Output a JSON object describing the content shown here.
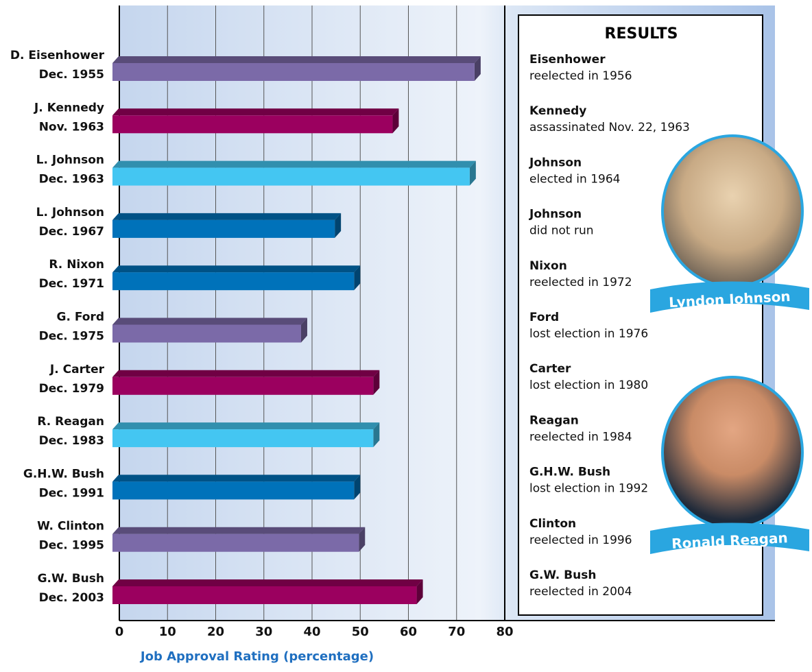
{
  "chart_data": {
    "type": "bar",
    "orientation": "horizontal",
    "x_label": "Job Approval Rating (percentage)",
    "categories": [
      [
        "D. Eisenhower",
        "Dec. 1955"
      ],
      [
        "J. Kennedy",
        "Nov. 1963"
      ],
      [
        "L. Johnson",
        "Dec. 1963"
      ],
      [
        "L. Johnson",
        "Dec. 1967"
      ],
      [
        "R. Nixon",
        "Dec. 1971"
      ],
      [
        "G. Ford",
        "Dec. 1975"
      ],
      [
        "J. Carter",
        "Dec. 1979"
      ],
      [
        "R. Reagan",
        "Dec. 1983"
      ],
      [
        "G.H.W. Bush",
        "Dec. 1991"
      ],
      [
        "W. Clinton",
        "Dec. 1995"
      ],
      [
        "G.W. Bush",
        "Dec. 2003"
      ]
    ],
    "values": [
      75,
      58,
      74,
      46,
      50,
      39,
      54,
      54,
      50,
      51,
      63
    ],
    "colors": [
      "#7b6aa8",
      "#9b005f",
      "#44c6f2",
      "#0072ba",
      "#0072ba",
      "#7b6aa8",
      "#9b005f",
      "#44c6f2",
      "#0072ba",
      "#7b6aa8",
      "#9b005f"
    ],
    "xlim": [
      0,
      80
    ],
    "xticks": [
      0,
      10,
      20,
      30,
      40,
      50,
      60,
      70,
      80
    ],
    "grid": true
  },
  "results": {
    "title": "RESULTS",
    "items": [
      {
        "name": "Eisenhower",
        "note": "reelected in 1956"
      },
      {
        "name": "Kennedy",
        "note": "assassinated Nov. 22, 1963"
      },
      {
        "name": "Johnson",
        "note": "elected in 1964"
      },
      {
        "name": "Johnson",
        "note": "did not run"
      },
      {
        "name": "Nixon",
        "note": "reelected in 1972"
      },
      {
        "name": "Ford",
        "note": "lost election in 1976"
      },
      {
        "name": "Carter",
        "note": "lost election in 1980"
      },
      {
        "name": "Reagan",
        "note": "reelected in 1984"
      },
      {
        "name": "G.H.W. Bush",
        "note": "lost election in 1992"
      },
      {
        "name": "Clinton",
        "note": "reelected in 1996"
      },
      {
        "name": "G.W. Bush",
        "note": "reelected in 2004"
      }
    ]
  },
  "photos": [
    "Lyndon Johnson",
    "Ronald Reagan"
  ]
}
